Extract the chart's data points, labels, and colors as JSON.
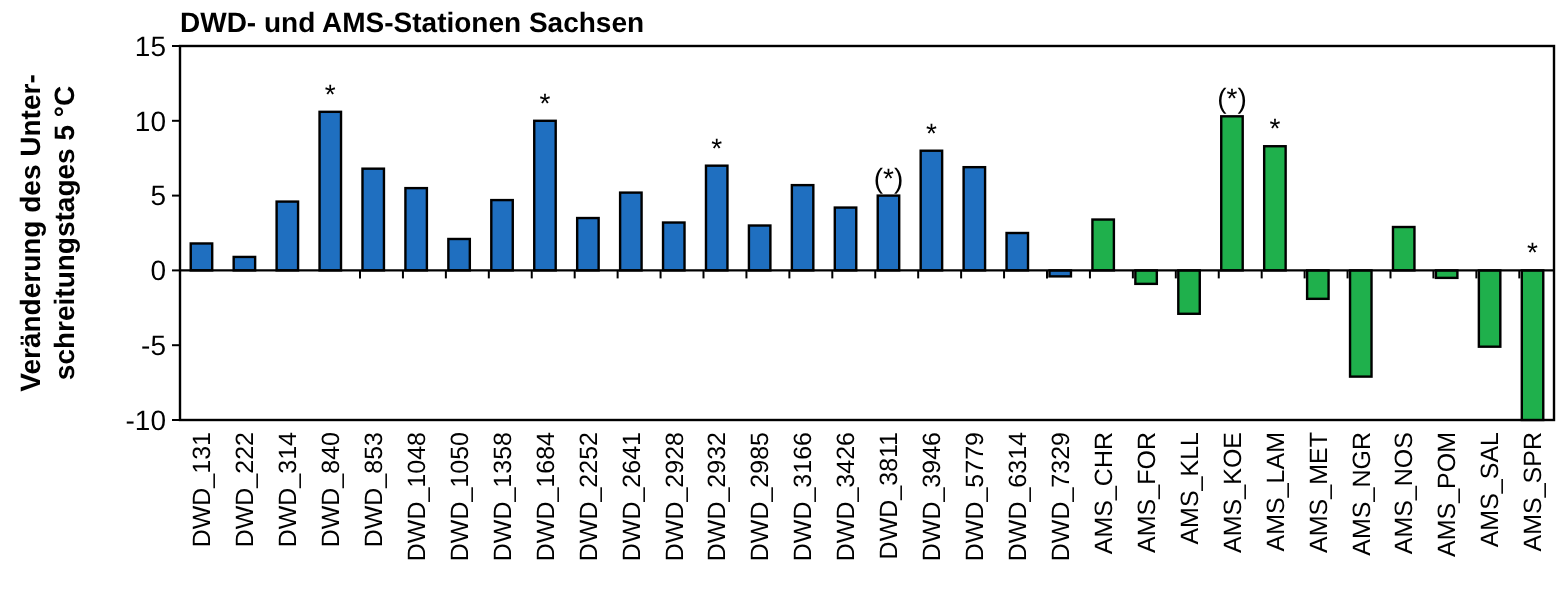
{
  "chart_data": {
    "type": "bar",
    "title": "DWD- und AMS-Stationen Sachsen",
    "ylabel": "Veränderung des Unter-\nschreitungstages 5 °C",
    "categories": [
      "DWD_131",
      "DWD_222",
      "DWD_314",
      "DWD_840",
      "DWD_853",
      "DWD_1048",
      "DWD_1050",
      "DWD_1358",
      "DWD_1684",
      "DWD_2252",
      "DWD_2641",
      "DWD_2928",
      "DWD_2932",
      "DWD_2985",
      "DWD_3166",
      "DWD_3426",
      "DWD_3811",
      "DWD_3946",
      "DWD_5779",
      "DWD_6314",
      "DWD_7329",
      "AMS_CHR",
      "AMS_FOR",
      "AMS_KLL",
      "AMS_KOE",
      "AMS_LAM",
      "AMS_MET",
      "AMS_NGR",
      "AMS_NOS",
      "AMS_POM",
      "AMS_SAL",
      "AMS_SPR"
    ],
    "values": [
      1.8,
      0.9,
      4.6,
      10.6,
      6.8,
      5.5,
      2.1,
      4.7,
      10.0,
      3.5,
      5.2,
      3.2,
      7.0,
      3.0,
      5.7,
      4.2,
      5.0,
      8.0,
      6.9,
      2.5,
      -0.4,
      3.4,
      -0.9,
      -2.9,
      10.3,
      8.3,
      -1.9,
      -7.1,
      2.9,
      -0.5,
      -5.1,
      -10
    ],
    "colors": [
      "#1f6fc0",
      "#1f6fc0",
      "#1f6fc0",
      "#1f6fc0",
      "#1f6fc0",
      "#1f6fc0",
      "#1f6fc0",
      "#1f6fc0",
      "#1f6fc0",
      "#1f6fc0",
      "#1f6fc0",
      "#1f6fc0",
      "#1f6fc0",
      "#1f6fc0",
      "#1f6fc0",
      "#1f6fc0",
      "#1f6fc0",
      "#1f6fc0",
      "#1f6fc0",
      "#1f6fc0",
      "#1f6fc0",
      "#1fb04c",
      "#1fb04c",
      "#1fb04c",
      "#1fb04c",
      "#1fb04c",
      "#1fb04c",
      "#1fb04c",
      "#1fb04c",
      "#1fb04c",
      "#1fb04c",
      "#1fb04c"
    ],
    "ylim": [
      -10,
      15
    ],
    "yticks": [
      -10,
      -5,
      0,
      5,
      10,
      15
    ],
    "annotations": [
      {
        "text": "*",
        "x": "DWD_840",
        "y": 10.6
      },
      {
        "text": "*",
        "x": "DWD_1684",
        "y": 10.0
      },
      {
        "text": "*",
        "x": "DWD_2932",
        "y": 7.0
      },
      {
        "text": "(*)",
        "x": "DWD_3811",
        "y": 5.0
      },
      {
        "text": "*",
        "x": "DWD_3946",
        "y": 8.0
      },
      {
        "text": "(*)",
        "x": "AMS_KOE",
        "y": 10.3
      },
      {
        "text": "*",
        "x": "AMS_LAM",
        "y": 8.3
      },
      {
        "text": "*",
        "x": "AMS_SPR",
        "y": 0
      }
    ]
  }
}
